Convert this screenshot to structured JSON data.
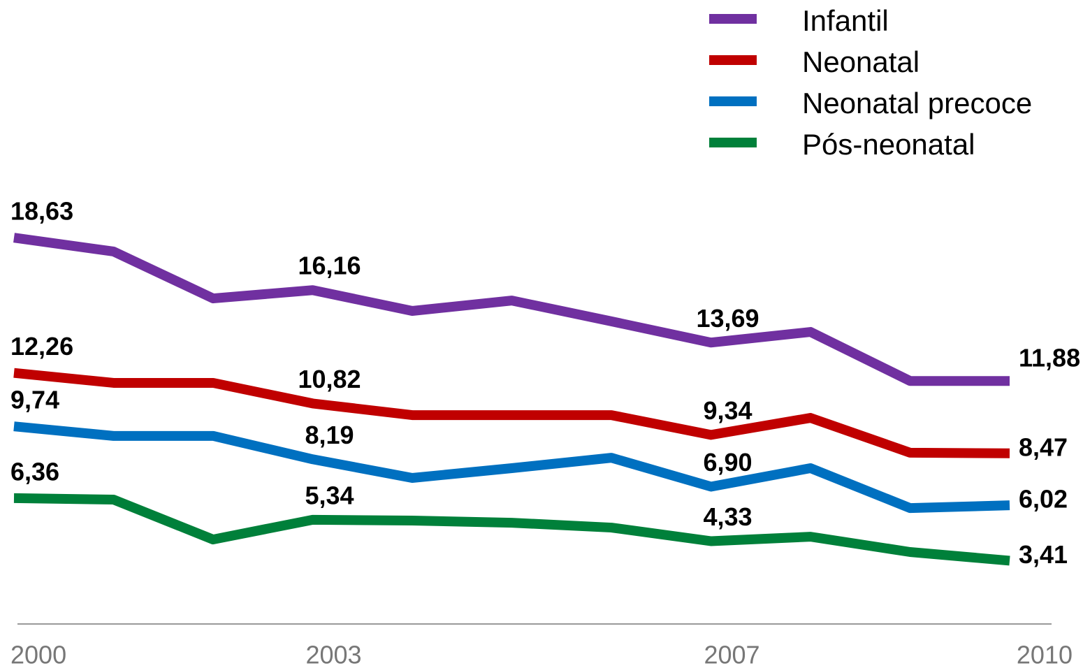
{
  "chart_data": {
    "type": "line",
    "categories": [
      "2000",
      null,
      null,
      "2003",
      null,
      null,
      null,
      "2007",
      null,
      null,
      "2010"
    ],
    "ylim": [
      0,
      20
    ],
    "legend": "top-right",
    "series": [
      {
        "name": "Infantil",
        "color": "#7030a0",
        "values": [
          18.63,
          17.98,
          15.77,
          16.16,
          15.18,
          15.67,
          14.69,
          13.69,
          14.19,
          11.88,
          11.88
        ],
        "value_labels": [
          "18,63",
          null,
          null,
          "16,16",
          null,
          null,
          null,
          "13,69",
          null,
          null,
          "11,88"
        ]
      },
      {
        "name": "Neonatal",
        "color": "#c00000",
        "values": [
          12.26,
          11.79,
          11.79,
          10.82,
          10.27,
          10.27,
          10.27,
          9.34,
          10.14,
          8.5,
          8.47
        ],
        "value_labels": [
          "12,26",
          null,
          null,
          "10,82",
          null,
          null,
          null,
          "9,34",
          null,
          null,
          "8,47"
        ]
      },
      {
        "name": "Neonatal precoce",
        "color": "#0070c0",
        "values": [
          9.74,
          9.29,
          9.29,
          8.19,
          7.31,
          7.77,
          8.26,
          6.9,
          7.77,
          5.89,
          6.02
        ],
        "value_labels": [
          "9,74",
          null,
          null,
          "8,19",
          null,
          null,
          null,
          "6,90",
          null,
          null,
          "6,02"
        ]
      },
      {
        "name": "Pós-neonatal",
        "color": "#00803a",
        "values": [
          6.36,
          6.29,
          4.41,
          5.34,
          5.3,
          5.2,
          4.97,
          4.33,
          4.54,
          3.82,
          3.41
        ],
        "value_labels": [
          "6,36",
          null,
          null,
          "5,34",
          null,
          null,
          null,
          "4,33",
          null,
          null,
          "3,41"
        ]
      }
    ]
  }
}
